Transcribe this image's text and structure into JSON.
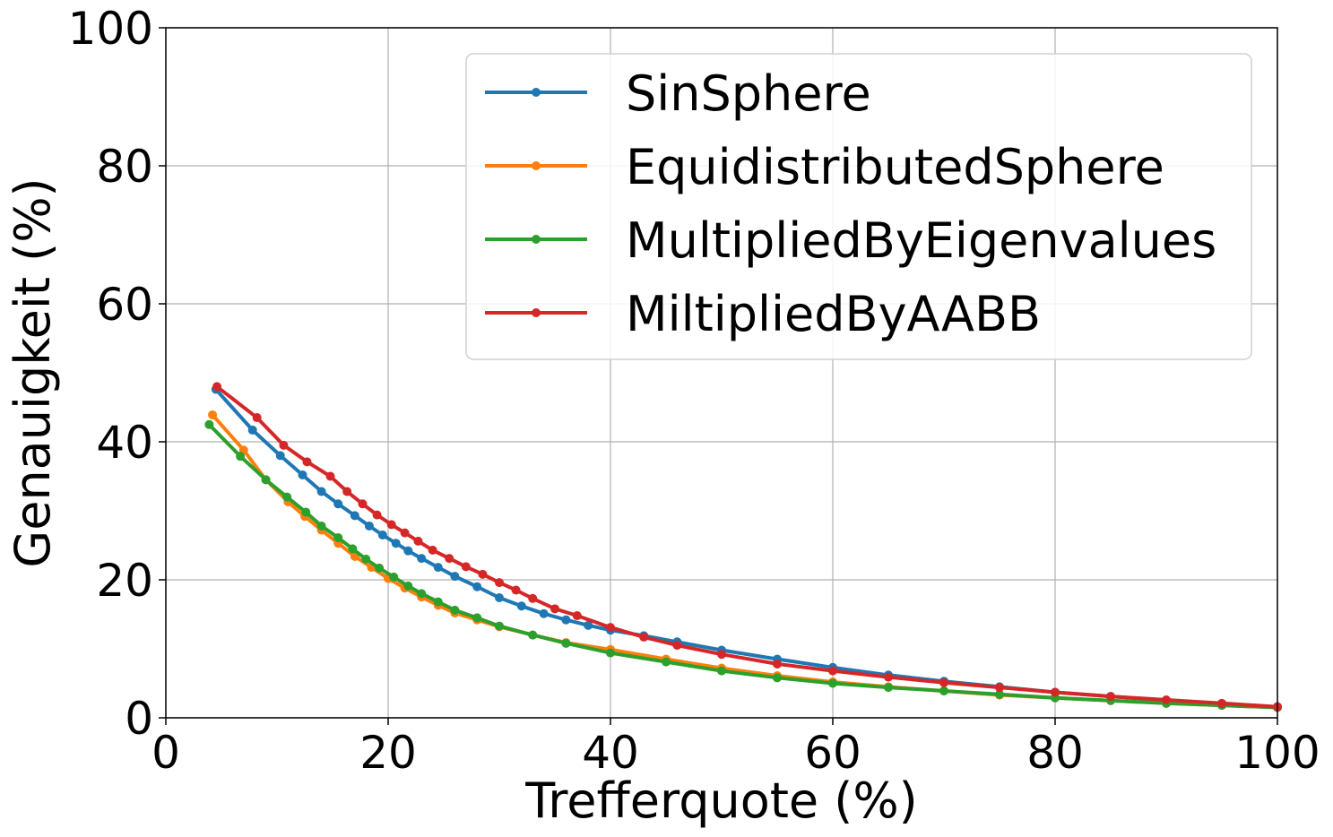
{
  "chart_data": {
    "type": "line",
    "xlabel": "Trefferquote (%)",
    "ylabel": "Genauigkeit (%)",
    "xlim": [
      0,
      100
    ],
    "ylim": [
      0,
      100
    ],
    "xticks": [
      "0",
      "20",
      "40",
      "60",
      "80",
      "100"
    ],
    "yticks": [
      "0",
      "20",
      "40",
      "60",
      "80",
      "100"
    ],
    "grid": true,
    "legend_position": "top-right",
    "series": [
      {
        "name": "SinSphere",
        "color": "#1f77b4",
        "x": [
          4.5,
          7.8,
          10.3,
          12.3,
          14.0,
          15.5,
          17.0,
          18.3,
          19.5,
          20.7,
          21.8,
          23.0,
          24.5,
          26.0,
          28.0,
          30.0,
          32.0,
          34.0,
          36.0,
          38.0,
          40.0,
          43.0,
          46.0,
          50.0,
          55.0,
          60.0,
          65.0,
          70.0,
          75.0,
          80.0,
          85.0,
          90.0,
          95.0,
          100.0
        ],
        "y": [
          47.6,
          41.7,
          38.0,
          35.2,
          32.8,
          31.0,
          29.3,
          27.8,
          26.5,
          25.3,
          24.2,
          23.1,
          21.8,
          20.5,
          19.0,
          17.4,
          16.2,
          15.1,
          14.2,
          13.4,
          12.7,
          11.9,
          11.0,
          9.8,
          8.5,
          7.3,
          6.2,
          5.3,
          4.5,
          3.7,
          3.1,
          2.5,
          2.0,
          1.6
        ]
      },
      {
        "name": "EquidistributedSphere",
        "color": "#ff7f0e",
        "x": [
          4.2,
          7.0,
          9.0,
          11.0,
          12.5,
          14.0,
          15.5,
          17.0,
          18.5,
          20.0,
          21.5,
          23.0,
          24.5,
          26.0,
          28.0,
          30.0,
          33.0,
          36.0,
          40.0,
          45.0,
          50.0,
          55.0,
          60.0,
          65.0,
          70.0,
          75.0,
          80.0,
          85.0,
          90.0,
          95.0,
          100.0
        ],
        "y": [
          43.9,
          38.8,
          34.5,
          31.3,
          29.2,
          27.2,
          25.3,
          23.4,
          21.8,
          20.2,
          18.8,
          17.5,
          16.3,
          15.2,
          14.2,
          13.2,
          12.0,
          10.9,
          9.9,
          8.5,
          7.2,
          6.1,
          5.2,
          4.5,
          3.9,
          3.3,
          2.9,
          2.5,
          2.1,
          1.8,
          1.5
        ]
      },
      {
        "name": "MultipliedByEigenvalues",
        "color": "#2ca02c",
        "x": [
          3.9,
          6.7,
          9.0,
          10.9,
          12.6,
          14.0,
          15.5,
          16.8,
          18.0,
          19.2,
          20.5,
          21.8,
          23.0,
          24.5,
          26.0,
          28.0,
          30.0,
          33.0,
          36.0,
          40.0,
          45.0,
          50.0,
          55.0,
          60.0,
          65.0,
          70.0,
          75.0,
          80.0,
          85.0,
          90.0,
          95.0,
          100.0
        ],
        "y": [
          42.5,
          37.9,
          34.5,
          32.0,
          29.8,
          27.8,
          26.1,
          24.5,
          23.0,
          21.7,
          20.4,
          19.1,
          18.0,
          16.8,
          15.6,
          14.5,
          13.3,
          12.0,
          10.8,
          9.4,
          8.1,
          6.8,
          5.8,
          5.0,
          4.4,
          3.9,
          3.4,
          2.9,
          2.5,
          2.1,
          1.8,
          1.5
        ]
      },
      {
        "name": "MiltipliedByAABB",
        "color": "#d62728",
        "x": [
          4.6,
          8.2,
          10.6,
          12.7,
          14.8,
          16.3,
          17.7,
          19.0,
          20.3,
          21.5,
          22.7,
          24.0,
          25.5,
          27.0,
          28.5,
          30.0,
          31.5,
          33.0,
          35.0,
          37.0,
          40.0,
          43.0,
          46.0,
          50.0,
          55.0,
          60.0,
          65.0,
          70.0,
          75.0,
          80.0,
          85.0,
          90.0,
          95.0,
          100.0
        ],
        "y": [
          48.0,
          43.5,
          39.5,
          37.1,
          35.0,
          32.8,
          31.0,
          29.4,
          28.0,
          26.8,
          25.6,
          24.3,
          23.1,
          21.9,
          20.8,
          19.6,
          18.5,
          17.3,
          15.8,
          14.8,
          13.1,
          11.7,
          10.5,
          9.2,
          7.8,
          6.8,
          5.9,
          5.1,
          4.4,
          3.7,
          3.1,
          2.6,
          2.1,
          1.6
        ]
      }
    ]
  }
}
